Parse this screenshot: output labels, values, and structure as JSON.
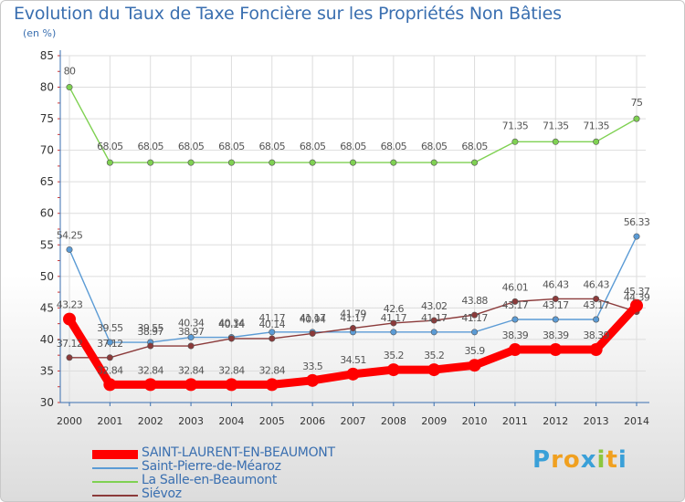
{
  "title": "Evolution du Taux de Taxe Foncière sur les Propriétés Non Bâties",
  "unit_label": "(en %)",
  "logo": {
    "letters": [
      "P",
      "r",
      "o",
      "x",
      "i",
      "t",
      "i"
    ],
    "colors": [
      "#3aa0d8",
      "#f0a020",
      "#f0a020",
      "#3aa0d8",
      "#8cc63f",
      "#f0a020",
      "#3aa0d8"
    ]
  },
  "colors": {
    "axis": "#3a6fb0",
    "grid": "#dddddd",
    "label": "#555555"
  },
  "chart_data": {
    "type": "line",
    "title": "Evolution du Taux de Taxe Foncière sur les Propriétés Non Bâties",
    "ylabel": "(en %)",
    "xlabel": "",
    "x": [
      "2000",
      "2001",
      "2002",
      "2003",
      "2004",
      "2005",
      "2006",
      "2007",
      "2008",
      "2009",
      "2010",
      "2011",
      "2012",
      "2013",
      "2014"
    ],
    "ylim": [
      30,
      85
    ],
    "yticks": [
      30,
      35,
      40,
      45,
      50,
      55,
      60,
      65,
      70,
      75,
      80,
      85
    ],
    "grid": true,
    "series": [
      {
        "name": "SAINT-LAURENT-EN-BEAUMONT",
        "color": "#ff0000",
        "values": [
          43.23,
          32.84,
          32.84,
          32.84,
          32.84,
          32.84,
          33.5,
          34.51,
          35.2,
          35.2,
          35.9,
          38.39,
          38.39,
          38.39,
          45.37
        ],
        "labels": [
          "43.23",
          "32.84",
          "32.84",
          "32.84",
          "32.84",
          "32.84",
          "33.5",
          "34.51",
          "35.2",
          "35.2",
          "35.9",
          "38.39",
          "38.39",
          "38.39",
          "45.37"
        ]
      },
      {
        "name": "Saint-Pierre-de-Méaroz",
        "color": "#5b9bd5",
        "values": [
          54.25,
          39.55,
          39.55,
          40.34,
          40.34,
          41.17,
          41.17,
          41.17,
          41.17,
          41.17,
          41.17,
          43.17,
          43.17,
          43.17,
          56.33
        ],
        "labels": [
          "54.25",
          "39.55",
          "39.55",
          "40.34",
          "40.34",
          "41.17",
          "41.17",
          "41.17",
          "41.17",
          "41.17",
          "41.17",
          "43.17",
          "43.17",
          "43.17",
          "56.33"
        ]
      },
      {
        "name": "La Salle-en-Beaumont",
        "color": "#7fd152",
        "values": [
          80,
          68.05,
          68.05,
          68.05,
          68.05,
          68.05,
          68.05,
          68.05,
          68.05,
          68.05,
          68.05,
          71.35,
          71.35,
          71.35,
          75
        ],
        "labels": [
          "80",
          "68.05",
          "68.05",
          "68.05",
          "68.05",
          "68.05",
          "68.05",
          "68.05",
          "68.05",
          "68.05",
          "68.05",
          "71.35",
          "71.35",
          "71.35",
          "75"
        ]
      },
      {
        "name": "Siévoz",
        "color": "#8b3a3a",
        "values": [
          37.12,
          37.12,
          38.97,
          38.97,
          40.14,
          40.14,
          40.94,
          41.79,
          42.6,
          43.02,
          43.88,
          46.01,
          46.43,
          46.43,
          44.39
        ],
        "labels": [
          "37.12",
          "37.12",
          "38.97",
          "38.97",
          "40.14",
          "40.14",
          "40.94",
          "41.79",
          "42.6",
          "43.02",
          "43.88",
          "46.01",
          "46.43",
          "46.43",
          "44.39"
        ]
      }
    ],
    "legend": {
      "position": "bottom-left",
      "entries": [
        "SAINT-LAURENT-EN-BEAUMONT",
        "Saint-Pierre-de-Méaroz",
        "La Salle-en-Beaumont",
        "Siévoz"
      ]
    }
  }
}
